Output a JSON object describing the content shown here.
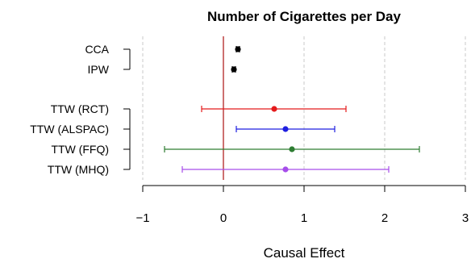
{
  "chart_data": {
    "type": "forest",
    "title": "Number of Cigarettes per Day",
    "xlabel": "Causal Effect",
    "ylabel": "",
    "xlim": [
      -1,
      3
    ],
    "xticks": [
      -1,
      0,
      1,
      2,
      3
    ],
    "xtick_labels": [
      "−1",
      "0",
      "1",
      "2",
      "3"
    ],
    "reference_line": 0,
    "grid": "vertical dashed",
    "colors": {
      "reference": "#b22222",
      "black": "#000000",
      "red": "#e41a1c",
      "blue": "#1f1fe0",
      "green": "#2e7d32",
      "purple": "#a64dea"
    },
    "estimates": [
      {
        "label": "CCA",
        "estimate": 0.18,
        "lower": 0.16,
        "upper": 0.2,
        "color": "#000000"
      },
      {
        "label": "IPW",
        "estimate": 0.13,
        "lower": 0.11,
        "upper": 0.15,
        "color": "#000000"
      },
      {
        "label": "TTW (RCT)",
        "estimate": 0.63,
        "lower": -0.27,
        "upper": 1.52,
        "color": "#e41a1c"
      },
      {
        "label": "TTW (ALSPAC)",
        "estimate": 0.77,
        "lower": 0.16,
        "upper": 1.38,
        "color": "#1f1fe0"
      },
      {
        "label": "TTW (FFQ)",
        "estimate": 0.85,
        "lower": -0.73,
        "upper": 2.43,
        "color": "#2e7d32"
      },
      {
        "label": "TTW (MHQ)",
        "estimate": 0.77,
        "lower": -0.51,
        "upper": 2.05,
        "color": "#a64dea"
      }
    ]
  }
}
